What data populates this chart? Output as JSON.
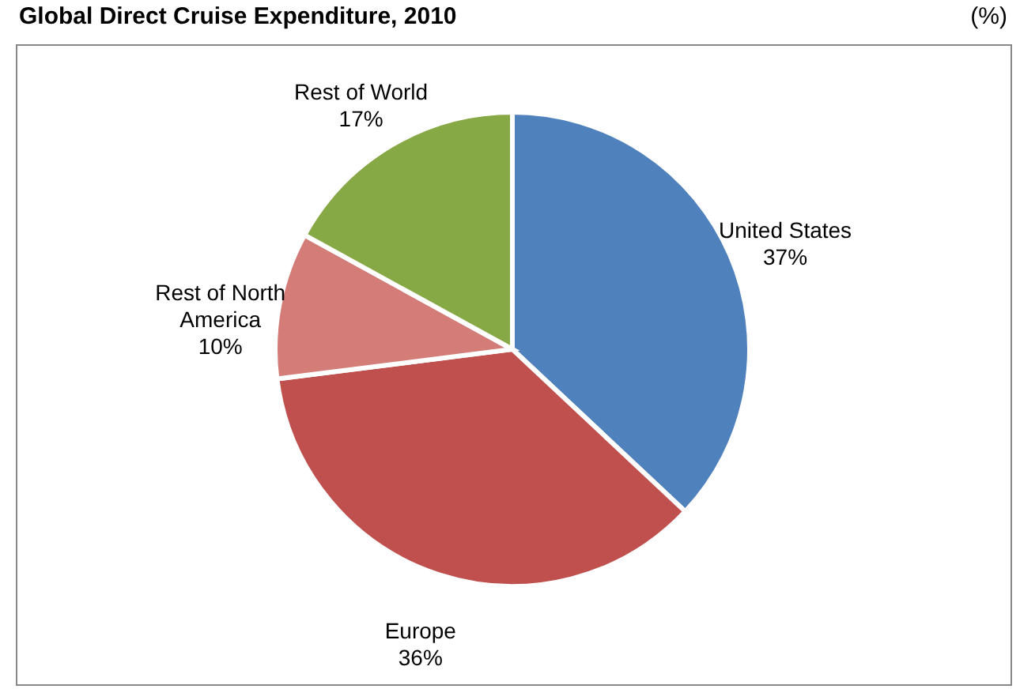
{
  "chart_data": {
    "type": "pie",
    "title": "Global Direct Cruise Expenditure, 2010",
    "subtitle": "(%)",
    "categories": [
      "United States",
      "Europe",
      "Rest of North America",
      "Rest of World"
    ],
    "values": [
      37,
      36,
      10,
      17
    ],
    "colors": [
      "#4f81bd",
      "#c0504d",
      "#d47c77",
      "#86a845"
    ],
    "value_labels": [
      "37%",
      "36%",
      "10%",
      "17%"
    ]
  }
}
